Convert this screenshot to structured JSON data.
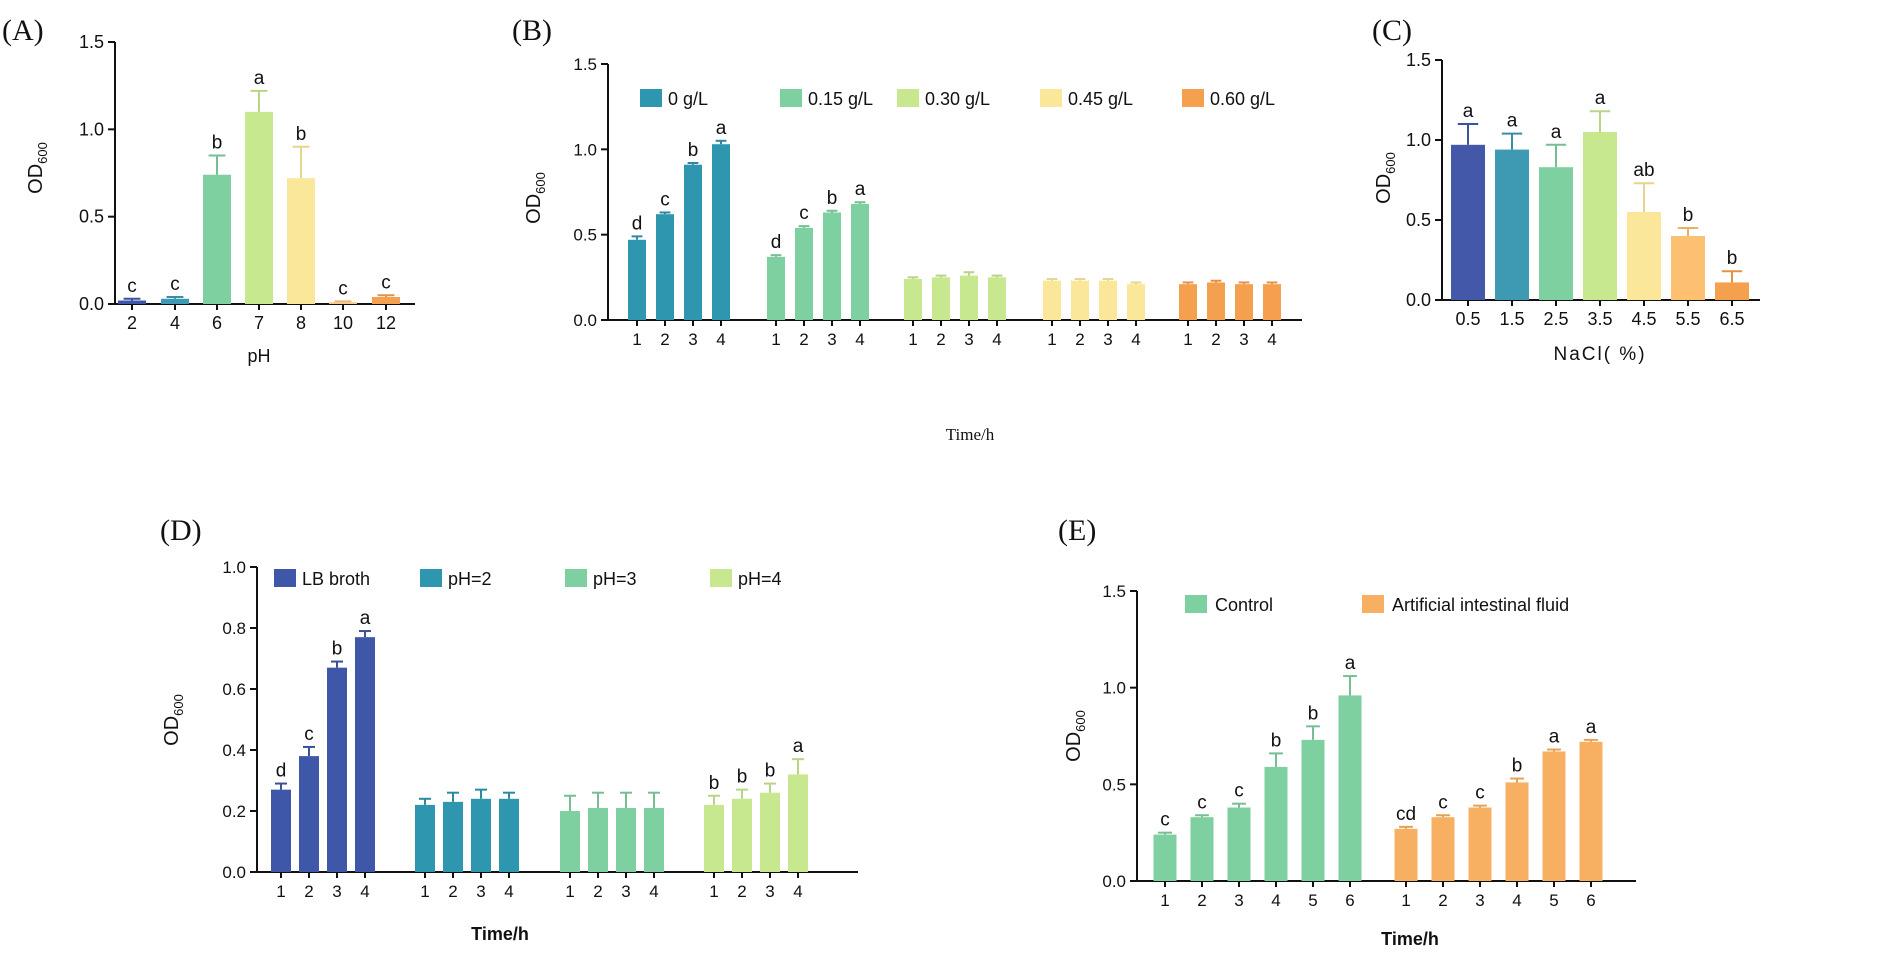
{
  "chart_data": [
    {
      "type": "bar",
      "panel_label": "(A)",
      "xlabel": "pH",
      "ylabel": "OD",
      "ylabel_sub": "600",
      "ylim": [
        0,
        1.5
      ],
      "yticks": [
        "0.0",
        "0.5",
        "1.0",
        "1.5"
      ],
      "categories": [
        "2",
        "4",
        "6",
        "7",
        "8",
        "10",
        "12"
      ],
      "values": [
        0.02,
        0.03,
        0.74,
        1.1,
        0.72,
        0.01,
        0.04
      ],
      "errors": [
        0.01,
        0.01,
        0.11,
        0.12,
        0.18,
        0.005,
        0.01
      ],
      "letters": [
        "c",
        "c",
        "b",
        "a",
        "b",
        "c",
        "c"
      ],
      "colors": [
        "#3f57a8",
        "#3e9ab3",
        "#7fd0a0",
        "#c8e890",
        "#fbe79a",
        "#fcc88a",
        "#f5a04e"
      ]
    },
    {
      "type": "bar",
      "panel_label": "(B)",
      "xlabel": "Time/h",
      "ylabel": "OD",
      "ylabel_sub": "600",
      "ylim": [
        0,
        1.5
      ],
      "yticks": [
        "0.0",
        "0.5",
        "1.0",
        "1.5"
      ],
      "x_labels": [
        "1",
        "2",
        "3",
        "4"
      ],
      "series": [
        {
          "name": "0 g/L",
          "color": "#2f96b0",
          "values": [
            0.47,
            0.62,
            0.91,
            1.03
          ],
          "errors": [
            0.02,
            0.01,
            0.01,
            0.02
          ],
          "letters": [
            "d",
            "c",
            "b",
            "a"
          ]
        },
        {
          "name": "0.15 g/L",
          "color": "#7fd0a0",
          "values": [
            0.37,
            0.54,
            0.63,
            0.68
          ],
          "errors": [
            0.01,
            0.01,
            0.01,
            0.01
          ],
          "letters": [
            "d",
            "c",
            "b",
            "a"
          ]
        },
        {
          "name": "0.30 g/L",
          "color": "#c8e890",
          "values": [
            0.24,
            0.25,
            0.26,
            0.25
          ],
          "errors": [
            0.01,
            0.01,
            0.02,
            0.01
          ],
          "letters": [
            "",
            "",
            "",
            ""
          ]
        },
        {
          "name": "0.45 g/L",
          "color": "#fbe79a",
          "values": [
            0.23,
            0.23,
            0.23,
            0.21
          ],
          "errors": [
            0.01,
            0.01,
            0.01,
            0.01
          ],
          "letters": [
            "",
            "",
            "",
            ""
          ]
        },
        {
          "name": "0.60 g/L",
          "color": "#f5a04e",
          "values": [
            0.21,
            0.22,
            0.21,
            0.21
          ],
          "errors": [
            0.01,
            0.01,
            0.01,
            0.01
          ],
          "letters": [
            "",
            "",
            "",
            ""
          ]
        }
      ]
    },
    {
      "type": "bar",
      "panel_label": "(C)",
      "xlabel": "NaCl( %)",
      "ylabel": "OD",
      "ylabel_sub": "600",
      "ylim": [
        0,
        1.5
      ],
      "yticks": [
        "0.0",
        "0.5",
        "1.0",
        "1.5"
      ],
      "categories": [
        "0.5",
        "1.5",
        "2.5",
        "3.5",
        "4.5",
        "5.5",
        "6.5"
      ],
      "values": [
        0.97,
        0.94,
        0.83,
        1.05,
        0.55,
        0.4,
        0.11
      ],
      "errors": [
        0.13,
        0.1,
        0.14,
        0.13,
        0.18,
        0.05,
        0.07
      ],
      "letters": [
        "a",
        "a",
        "a",
        "a",
        "ab",
        "b",
        "b"
      ],
      "colors": [
        "#4358a8",
        "#3e9ab3",
        "#7fd0a0",
        "#c8e890",
        "#fbe79a",
        "#fcc070",
        "#f5a04e"
      ]
    },
    {
      "type": "bar",
      "panel_label": "(D)",
      "xlabel": "Time/h",
      "ylabel": "OD",
      "ylabel_sub": "600",
      "ylim": [
        0,
        1.0
      ],
      "yticks": [
        "0.0",
        "0.2",
        "0.4",
        "0.6",
        "0.8",
        "1.0"
      ],
      "x_labels": [
        "1",
        "2",
        "3",
        "4"
      ],
      "series": [
        {
          "name": "LB broth",
          "color": "#3f57a8",
          "values": [
            0.27,
            0.38,
            0.67,
            0.77
          ],
          "errors": [
            0.02,
            0.03,
            0.02,
            0.02
          ],
          "letters": [
            "d",
            "c",
            "b",
            "a"
          ]
        },
        {
          "name": "pH=2",
          "color": "#2f96b0",
          "values": [
            0.22,
            0.23,
            0.24,
            0.24
          ],
          "errors": [
            0.02,
            0.03,
            0.03,
            0.02
          ],
          "letters": [
            "",
            "",
            "",
            ""
          ]
        },
        {
          "name": "pH=3",
          "color": "#7fd0a0",
          "values": [
            0.2,
            0.21,
            0.21,
            0.21
          ],
          "errors": [
            0.05,
            0.05,
            0.05,
            0.05
          ],
          "letters": [
            "",
            "",
            "",
            ""
          ]
        },
        {
          "name": "pH=4",
          "color": "#c8e890",
          "values": [
            0.22,
            0.24,
            0.26,
            0.32
          ],
          "errors": [
            0.03,
            0.03,
            0.03,
            0.05
          ],
          "letters": [
            "b",
            "b",
            "b",
            "a"
          ]
        }
      ]
    },
    {
      "type": "bar",
      "panel_label": "(E)",
      "xlabel": "Time/h",
      "ylabel": "OD",
      "ylabel_sub": "600",
      "ylim": [
        0,
        1.5
      ],
      "yticks": [
        "0.0",
        "0.5",
        "1.0",
        "1.5"
      ],
      "x_labels": [
        "1",
        "2",
        "3",
        "4",
        "5",
        "6"
      ],
      "series": [
        {
          "name": "Control",
          "color": "#7fd0a0",
          "values": [
            0.24,
            0.33,
            0.38,
            0.59,
            0.73,
            0.96
          ],
          "errors": [
            0.01,
            0.01,
            0.02,
            0.07,
            0.07,
            0.1
          ],
          "letters": [
            "c",
            "c",
            "c",
            "b",
            "b",
            "a"
          ]
        },
        {
          "name": "Artificial intestinal fluid",
          "color": "#f7b061",
          "values": [
            0.27,
            0.33,
            0.38,
            0.51,
            0.67,
            0.72
          ],
          "errors": [
            0.01,
            0.01,
            0.01,
            0.02,
            0.01,
            0.01
          ],
          "letters": [
            "cd",
            "c",
            "c",
            "b",
            "a",
            "a"
          ]
        }
      ]
    }
  ]
}
